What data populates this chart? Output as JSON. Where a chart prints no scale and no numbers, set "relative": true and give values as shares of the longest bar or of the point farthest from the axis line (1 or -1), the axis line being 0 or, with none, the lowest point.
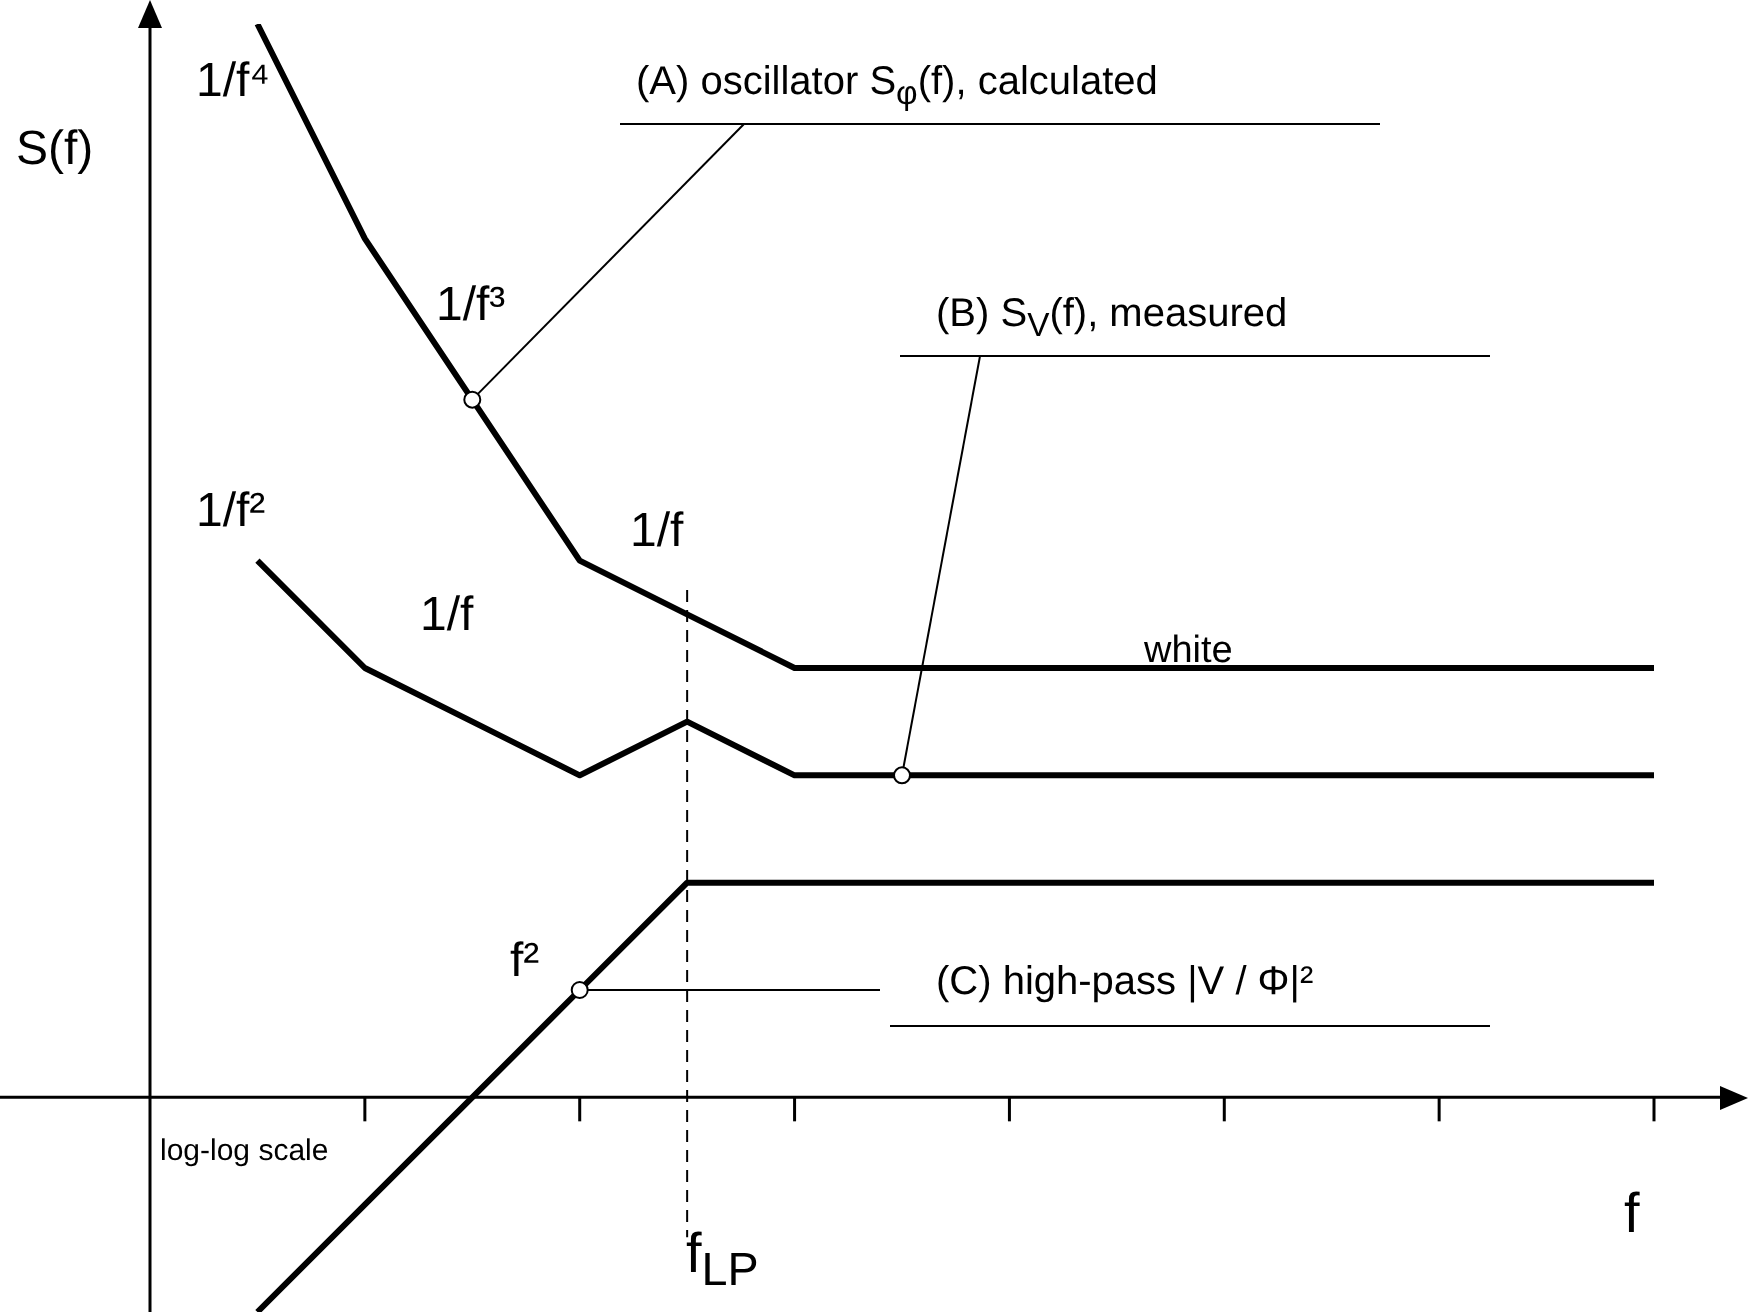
{
  "chart_data": {
    "type": "line",
    "relative": true,
    "xlabel": "f",
    "ylabel": "S(f)",
    "legend": false,
    "marker": "none",
    "line_style": "solid",
    "categories": [
      null,
      null,
      null,
      null,
      null,
      null,
      null,
      null,
      null,
      null,
      null,
      null,
      null,
      null,
      null
    ],
    "series": [
      {
        "color": "#000000",
        "values": [
          null,
          1.0,
          0.8,
          0.65,
          0.5,
          0.45,
          0.4,
          0.4,
          0.4,
          0.4,
          0.4,
          0.4,
          0.4,
          0.4,
          0.4
        ]
      },
      {
        "color": "#000000",
        "values": [
          null,
          0.5,
          0.4,
          0.35,
          0.3,
          0.35,
          0.3,
          0.3,
          0.3,
          0.3,
          0.3,
          0.3,
          0.3,
          0.3,
          0.3
        ]
      },
      {
        "color": "#000000",
        "values": [
          null,
          -0.2,
          -0.1,
          0.0,
          0.1,
          0.2,
          0.2,
          0.2,
          0.2,
          0.2,
          0.2,
          0.2,
          0.2,
          0.2,
          0.2
        ]
      }
    ],
    "annotations": [
      "1/f⁴",
      "1/f³",
      "1/f",
      "1/f²",
      "1/f",
      "white",
      "(A)  oscillator S$_{φ}$(f), calculated",
      "(B)  S$_{V}$(f), measured",
      "(C)  high-pass  |V / Φ|²",
      "f²",
      "log-log scale",
      "f$_{LP}$"
    ]
  }
}
